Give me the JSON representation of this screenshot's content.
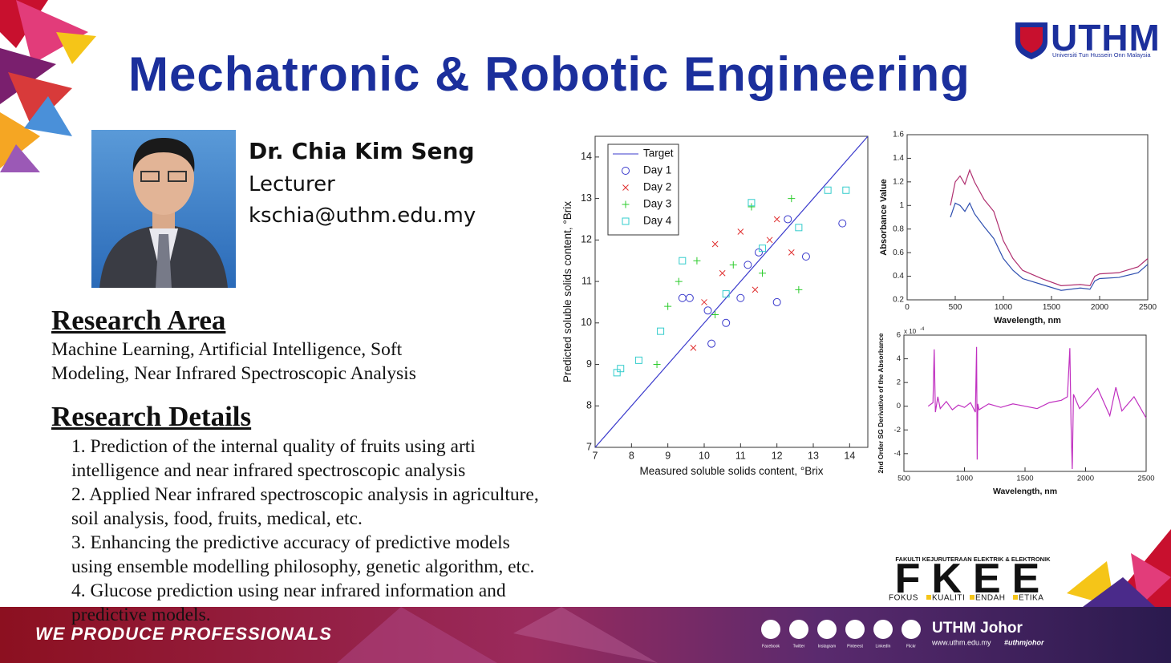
{
  "header": {
    "title": "Mechatronic & Robotic Engineering",
    "logo": "UTHM",
    "logo_sub": "Universiti Tun Hussein Onn Malaysia"
  },
  "profile": {
    "name": "Dr. Chia Kim Seng",
    "position": "Lecturer",
    "email": "kschia@uthm.edu.my"
  },
  "research_area": {
    "heading": "Research Area",
    "text": "Machine Learning, Artificial Intelligence, Soft\nModeling, Near Infrared Spectroscopic Analysis"
  },
  "research_details": {
    "heading": "Research Details",
    "items": [
      "1. Prediction of the internal quality of fruits using arti\nintelligence and near infrared spectroscopic analysis",
      "2. Applied Near infrared spectroscopic analysis in agriculture,\nsoil analysis, food, fruits, medical, etc.",
      "3. Enhancing the predictive accuracy of predictive models\nusing ensemble modelling philosophy, genetic algorithm, etc.",
      "4. Glucose prediction using near infrared information and\npredictive models."
    ]
  },
  "chart_data": [
    {
      "type": "scatter",
      "xlabel": "Measured soluble solids content, °Brix",
      "ylabel": "Predicted soluble solids content, °Brix",
      "xlim": [
        7,
        14.5
      ],
      "ylim": [
        7,
        14.5
      ],
      "xticks": [
        7,
        8,
        9,
        10,
        11,
        12,
        13,
        14
      ],
      "yticks": [
        7,
        8,
        9,
        10,
        11,
        12,
        13,
        14
      ],
      "legend": "upper left",
      "series": [
        {
          "name": "Target",
          "marker": "line",
          "color": "#3a3acc",
          "x": [
            7,
            14.5
          ],
          "values": [
            7,
            14.5
          ]
        },
        {
          "name": "Day 1",
          "marker": "o",
          "color": "#3a3acc",
          "x": [
            9.4,
            9.6,
            10.2,
            10.6,
            11,
            11.5,
            12,
            12.3,
            12.8,
            13.8,
            10.1,
            11.2
          ],
          "values": [
            10.6,
            10.6,
            9.5,
            10,
            10.6,
            11.7,
            10.5,
            12.5,
            11.6,
            12.4,
            10.3,
            11.4
          ]
        },
        {
          "name": "Day 2",
          "marker": "x",
          "color": "#e03030",
          "x": [
            9.7,
            10,
            10.5,
            11,
            11.8,
            12.4,
            10.3,
            11.4,
            12
          ],
          "values": [
            9.4,
            10.5,
            11.2,
            12.2,
            12,
            11.7,
            11.9,
            10.8,
            12.5
          ]
        },
        {
          "name": "Day 3",
          "marker": "+",
          "color": "#2ccc2c",
          "x": [
            8.7,
            9,
            9.3,
            9.8,
            10.8,
            11.3,
            12.4,
            12.6,
            10.3,
            11.6
          ],
          "values": [
            9,
            10.4,
            11,
            11.5,
            11.4,
            12.8,
            13,
            10.8,
            10.2,
            11.2
          ]
        },
        {
          "name": "Day 4",
          "marker": "s",
          "color": "#33cccc",
          "x": [
            7.6,
            7.7,
            8.2,
            8.8,
            9.4,
            10.6,
            11.3,
            12.6,
            13.4,
            13.9,
            11.6
          ],
          "values": [
            8.8,
            8.9,
            9.1,
            9.8,
            11.5,
            10.7,
            12.9,
            12.3,
            13.2,
            13.2,
            11.8
          ]
        }
      ]
    },
    {
      "type": "line",
      "xlabel": "Wavelength, nm",
      "ylabel": "Absorbance Value",
      "xlim": [
        0,
        2500
      ],
      "ylim": [
        0.2,
        1.6
      ],
      "xticks": [
        0,
        500,
        1000,
        1500,
        2000,
        2500
      ],
      "yticks": [
        0.2,
        0.4,
        0.6,
        0.8,
        1,
        1.2,
        1.4,
        1.6
      ],
      "x": [
        450,
        500,
        550,
        600,
        650,
        700,
        800,
        900,
        1000,
        1100,
        1200,
        1400,
        1600,
        1800,
        1900,
        1950,
        2000,
        2200,
        2400,
        2500
      ],
      "series": [
        {
          "color": "#b03070",
          "values": [
            1.0,
            1.2,
            1.25,
            1.18,
            1.3,
            1.2,
            1.05,
            0.95,
            0.7,
            0.55,
            0.45,
            0.38,
            0.32,
            0.33,
            0.32,
            0.4,
            0.42,
            0.43,
            0.48,
            0.55
          ]
        },
        {
          "color": "#3050b0",
          "values": [
            0.9,
            1.02,
            1.0,
            0.95,
            1.02,
            0.93,
            0.82,
            0.72,
            0.55,
            0.45,
            0.38,
            0.33,
            0.28,
            0.3,
            0.29,
            0.36,
            0.38,
            0.39,
            0.43,
            0.5
          ]
        }
      ]
    },
    {
      "type": "line",
      "xlabel": "Wavelength, nm",
      "ylabel": "2nd Order SG Derivative of the Absorbance",
      "yscale_label": "x 10",
      "yscale_exponent": "-4",
      "xlim": [
        500,
        2500
      ],
      "ylim": [
        -5.5,
        6
      ],
      "xticks": [
        500,
        1000,
        1500,
        2000,
        2500
      ],
      "yticks": [
        -4,
        -2,
        0,
        2,
        4,
        6
      ],
      "x": [
        700,
        740,
        750,
        760,
        780,
        800,
        850,
        900,
        950,
        1000,
        1050,
        1090,
        1100,
        1105,
        1110,
        1120,
        1200,
        1300,
        1400,
        1500,
        1600,
        1700,
        1800,
        1850,
        1870,
        1880,
        1890,
        1900,
        1950,
        2000,
        2100,
        2200,
        2250,
        2300,
        2400,
        2500
      ],
      "series": [
        {
          "color": "#c030c0",
          "values": [
            0,
            0.3,
            4.8,
            -0.5,
            0.8,
            -0.2,
            0.4,
            -0.3,
            0.1,
            -0.1,
            0.3,
            -0.5,
            5,
            -4.5,
            0.2,
            -0.3,
            0.2,
            -0.1,
            0.2,
            0,
            -0.2,
            0.3,
            0.5,
            0.8,
            4.9,
            -1.5,
            -5.3,
            1,
            -0.2,
            0.3,
            1.5,
            -0.8,
            1.6,
            -0.4,
            0.8,
            -1
          ]
        }
      ]
    }
  ],
  "fkee": {
    "caption": "FAKULTI KEJURUTERAAN ELEKTRIK & ELEKTRONIK",
    "logo": "FKEE",
    "motto": [
      "FOKUS",
      "KUALITI",
      "ENDAH",
      "ETIKA"
    ]
  },
  "footer": {
    "slogan": "WE PRODUCE PROFESSIONALS",
    "social": [
      "Facebook",
      "Twitter",
      "Instagram",
      "Pinterest",
      "LinkedIn",
      "Flickr"
    ],
    "brand": "UTHM Johor",
    "url": "www.uthm.edu.my",
    "hashtag": "#uthmjohor"
  }
}
